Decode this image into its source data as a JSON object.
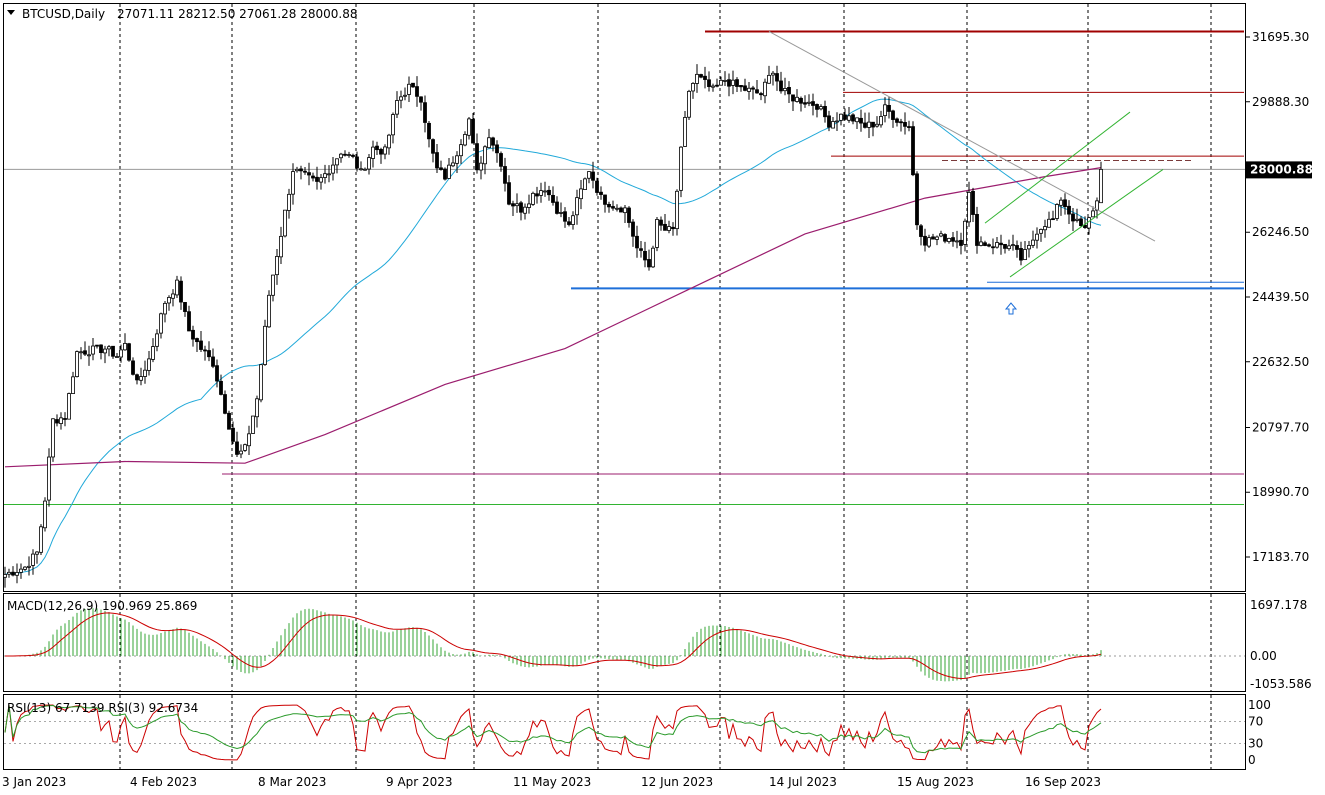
{
  "header": {
    "symbol_title": "BTCUSD,Daily",
    "ohlc": "27071.11 28212.50 27061.28 28000.88"
  },
  "price_panel": {
    "axis_labels": [
      "31695.30",
      "29888.30",
      "28000.88",
      "26246.50",
      "24439.50",
      "22632.50",
      "20797.70",
      "18990.70",
      "17183.70"
    ],
    "axis_values": [
      31695.3,
      29888.3,
      28000.88,
      26246.5,
      24439.5,
      22632.5,
      20797.7,
      18990.7,
      17183.7
    ],
    "current_price_label": "28000.88",
    "current_price": 28000.88
  },
  "macd_panel": {
    "title": "MACD(12,26,9) 190.969 25.869",
    "axis_labels": [
      "1697.178",
      "0.00",
      "-1053.586"
    ],
    "axis_values": [
      1697.178,
      0,
      -1053.586
    ]
  },
  "rsi_panel": {
    "title": "RSI(13) 67.7139  RSI(3) 92.6734",
    "axis_labels": [
      "100",
      "70",
      "30",
      "0"
    ],
    "axis_values": [
      100,
      70,
      30,
      0
    ]
  },
  "x_axis": {
    "labels": [
      "3 Jan 2023",
      "4 Feb 2023",
      "8 Mar 2023",
      "9 Apr 2023",
      "11 May 2023",
      "12 Jun 2023",
      "14 Jul 2023",
      "15 Aug 2023",
      "16 Sep 2023"
    ]
  },
  "colors": {
    "grid": "#000000",
    "candle": "#000000",
    "bull_body": "#ffffff",
    "ma_short": "#21a9d9",
    "ma_long": "#9b1d6e",
    "resistance": "#a00000",
    "support": "#1e6fd9",
    "channel": "#32b432",
    "macd_hist": "#35a635",
    "macd_signal": "#cc0000",
    "rsi_fast": "#cc0000",
    "rsi_slow": "#2a9a2a"
  },
  "chart_data": {
    "type": "candlestick",
    "title": "BTCUSD,Daily",
    "timeframe": "Daily",
    "last_ohlc": {
      "open": 27071.11,
      "high": 28212.5,
      "low": 27061.28,
      "close": 28000.88
    },
    "y_range": [
      16500,
      32300
    ],
    "date_labels": [
      "3 Jan 2023",
      "4 Feb 2023",
      "8 Mar 2023",
      "9 Apr 2023",
      "11 May 2023",
      "12 Jun 2023",
      "14 Jul 2023",
      "15 Aug 2023",
      "16 Sep 2023"
    ],
    "approx_close_path": [
      [
        0,
        16700
      ],
      [
        5,
        16900
      ],
      [
        8,
        17300
      ],
      [
        10,
        18800
      ],
      [
        12,
        21000
      ],
      [
        15,
        21100
      ],
      [
        18,
        22900
      ],
      [
        25,
        23000
      ],
      [
        28,
        22800
      ],
      [
        30,
        23100
      ],
      [
        33,
        22000
      ],
      [
        36,
        22700
      ],
      [
        40,
        24300
      ],
      [
        43,
        24800
      ],
      [
        46,
        23500
      ],
      [
        49,
        23000
      ],
      [
        52,
        22600
      ],
      [
        55,
        21300
      ],
      [
        58,
        20000
      ],
      [
        60,
        20200
      ],
      [
        63,
        21600
      ],
      [
        66,
        24500
      ],
      [
        69,
        26200
      ],
      [
        72,
        28000
      ],
      [
        75,
        27800
      ],
      [
        78,
        27600
      ],
      [
        81,
        28000
      ],
      [
        84,
        28500
      ],
      [
        87,
        28300
      ],
      [
        89,
        27900
      ],
      [
        92,
        28600
      ],
      [
        95,
        28500
      ],
      [
        98,
        29900
      ],
      [
        101,
        30300
      ],
      [
        104,
        30000
      ],
      [
        106,
        28800
      ],
      [
        108,
        28000
      ],
      [
        110,
        27800
      ],
      [
        113,
        28500
      ],
      [
        116,
        29400
      ],
      [
        118,
        27900
      ],
      [
        121,
        29000
      ],
      [
        124,
        28200
      ],
      [
        126,
        27100
      ],
      [
        129,
        26900
      ],
      [
        132,
        27300
      ],
      [
        135,
        27500
      ],
      [
        138,
        26900
      ],
      [
        141,
        26400
      ],
      [
        143,
        27100
      ],
      [
        146,
        28000
      ],
      [
        149,
        27200
      ],
      [
        152,
        27000
      ],
      [
        155,
        26900
      ],
      [
        158,
        25800
      ],
      [
        161,
        25300
      ],
      [
        163,
        26500
      ],
      [
        165,
        26300
      ],
      [
        167,
        26300
      ],
      [
        169,
        28500
      ],
      [
        171,
        30200
      ],
      [
        173,
        30600
      ],
      [
        175,
        30400
      ],
      [
        177,
        30200
      ],
      [
        180,
        30500
      ],
      [
        183,
        30300
      ],
      [
        186,
        30200
      ],
      [
        189,
        30100
      ],
      [
        192,
        30800
      ],
      [
        194,
        30200
      ],
      [
        197,
        30000
      ],
      [
        200,
        29900
      ],
      [
        203,
        29800
      ],
      [
        206,
        29300
      ],
      [
        209,
        29500
      ],
      [
        212,
        29400
      ],
      [
        215,
        29200
      ],
      [
        218,
        29300
      ],
      [
        220,
        29700
      ],
      [
        223,
        29400
      ],
      [
        226,
        29200
      ],
      [
        228,
        26500
      ],
      [
        230,
        26000
      ],
      [
        233,
        26100
      ],
      [
        236,
        26100
      ],
      [
        239,
        26000
      ],
      [
        241,
        27300
      ],
      [
        243,
        26000
      ],
      [
        246,
        25900
      ],
      [
        249,
        25900
      ],
      [
        252,
        25800
      ],
      [
        254,
        25500
      ],
      [
        256,
        25800
      ],
      [
        258,
        26300
      ],
      [
        260,
        26500
      ],
      [
        262,
        26600
      ],
      [
        264,
        27200
      ],
      [
        266,
        26800
      ],
      [
        268,
        26500
      ],
      [
        270,
        26300
      ],
      [
        272,
        26900
      ],
      [
        273,
        27100
      ],
      [
        274,
        28000
      ]
    ],
    "horizontal_levels": [
      {
        "price": 31850,
        "color": "resistance",
        "label": "resistance"
      },
      {
        "price": 30150,
        "color": "resistance",
        "label": "resistance"
      },
      {
        "price": 28370,
        "color": "resistance",
        "label": "resistance"
      },
      {
        "price": 24680,
        "color": "support",
        "label": "support"
      },
      {
        "price": 19500,
        "color": "ma_long",
        "label": "support"
      },
      {
        "price": 18650,
        "color": "channel",
        "label": "support"
      }
    ],
    "indicators": {
      "macd": {
        "fast": 12,
        "slow": 26,
        "signal": 9,
        "value": 190.969,
        "signal_value": 25.869
      },
      "rsi": [
        {
          "period": 13,
          "value": 67.7139
        },
        {
          "period": 3,
          "value": 92.6734
        }
      ]
    },
    "grid": true
  }
}
